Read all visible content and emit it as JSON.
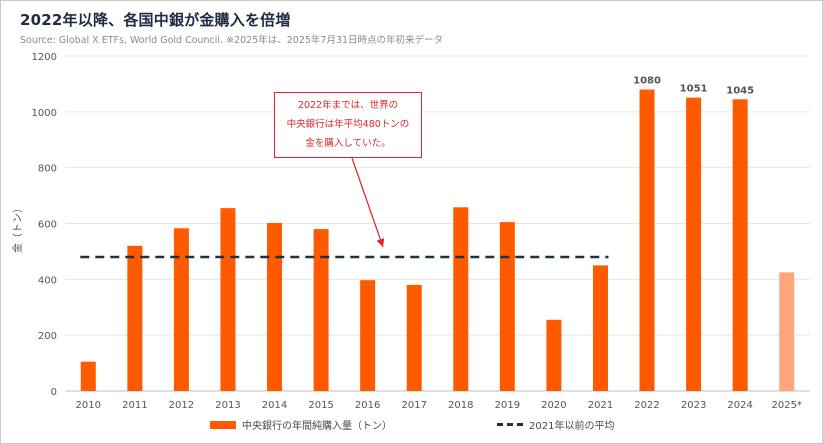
{
  "header": {
    "title": "2022年以降、各国中銀が金購入を倍増",
    "source": "Source: Global X ETFs, World Gold Council. ※2025年は、2025年7月31日時点の年初来データ"
  },
  "annotation": {
    "lines": [
      "2022年までは、世界の",
      "中央銀行は年平均480トンの",
      "金を購入していた。"
    ]
  },
  "legend": {
    "bars_label": "中央銀行の年間純購入量（トン）",
    "avg_label": "2021年以前の平均"
  },
  "colors": {
    "bar": "#ff5a00",
    "bar_partial": "#ffa77a",
    "avg_line": "#1b3340",
    "annotation": "#e0242b",
    "grid": "#e6e6e6"
  },
  "chart_data": {
    "type": "bar",
    "ylabel": "金（トン）",
    "ylim": [
      0,
      1200
    ],
    "yticks": [
      0,
      200,
      400,
      600,
      800,
      1000,
      1200
    ],
    "categories": [
      "2010",
      "2011",
      "2012",
      "2013",
      "2014",
      "2015",
      "2016",
      "2017",
      "2018",
      "2019",
      "2020",
      "2021",
      "2022",
      "2023",
      "2024",
      "2025*"
    ],
    "values": [
      105,
      520,
      583,
      655,
      602,
      580,
      397,
      380,
      658,
      605,
      255,
      450,
      1080,
      1051,
      1045,
      425
    ],
    "partial_index": 15,
    "data_labels": [
      {
        "index": 12,
        "text": "1080"
      },
      {
        "index": 13,
        "text": "1051"
      },
      {
        "index": 14,
        "text": "1045"
      }
    ],
    "reference_line": {
      "name": "2021年以前の平均",
      "value": 480,
      "from": "2010",
      "to": "2021",
      "style": "dashed"
    },
    "grid": true,
    "legend_position": "bottom"
  }
}
